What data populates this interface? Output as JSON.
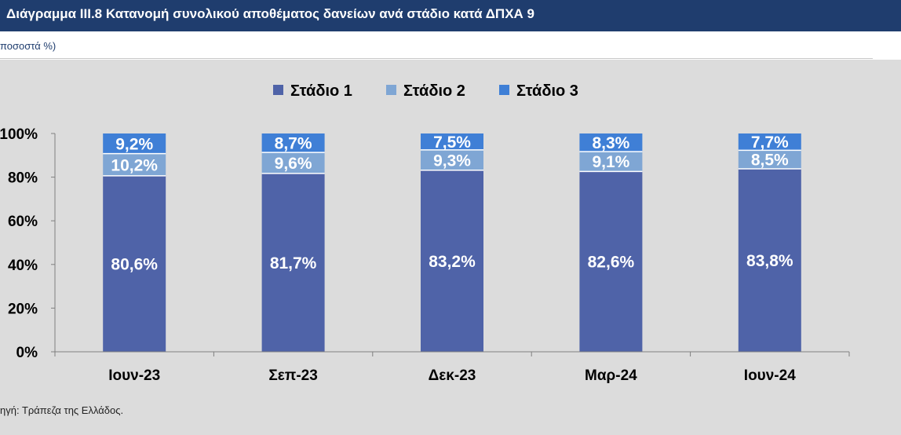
{
  "header": {
    "title": "Διάγραμμα ΙΙΙ.8 Κατανομή συνολικού αποθέματος δανείων ανά στάδιο κατά ΔΠΧΑ 9",
    "subtitle": "ποσοστά %)"
  },
  "footer": {
    "source": "ηγή: Τράπεζα της Ελλάδος."
  },
  "colors": {
    "title_bar": "#1f3d6e",
    "plot_background": "#dcdcdc",
    "stage1": "#4f63a8",
    "stage2": "#7fa6d4",
    "stage3": "#3f7fd6"
  },
  "chart_data": {
    "type": "bar",
    "stacked": true,
    "categories": [
      "Ιουν-23",
      "Σεπ-23",
      "Δεκ-23",
      "Μαρ-24",
      "Ιουν-24"
    ],
    "series": [
      {
        "name": "Στάδιο 1",
        "values": [
          80.6,
          81.7,
          83.2,
          82.6,
          83.8
        ],
        "labels": [
          "80,6%",
          "81,7%",
          "83,2%",
          "82,6%",
          "83,8%"
        ]
      },
      {
        "name": "Στάδιο 2",
        "values": [
          10.2,
          9.6,
          9.3,
          9.1,
          8.5
        ],
        "labels": [
          "10,2%",
          "9,6%",
          "9,3%",
          "9,1%",
          "8,5%"
        ]
      },
      {
        "name": "Στάδιο 3",
        "values": [
          9.2,
          8.7,
          7.5,
          8.3,
          7.7
        ],
        "labels": [
          "9,2%",
          "8,7%",
          "7,5%",
          "8,3%",
          "7,7%"
        ]
      }
    ],
    "ylim": [
      0,
      100
    ],
    "yticks": [
      0,
      20,
      40,
      60,
      80,
      100
    ],
    "ytick_labels": [
      "0%",
      "20%",
      "40%",
      "60%",
      "80%",
      "100%"
    ],
    "legend": "top-center",
    "grid": false
  }
}
